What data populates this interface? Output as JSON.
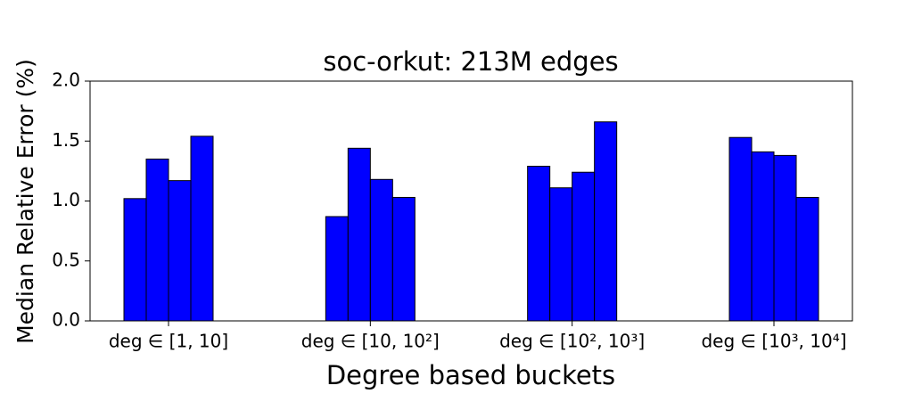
{
  "chart_data": {
    "type": "bar",
    "title": "soc-orkut: 213M edges",
    "x_label": "Degree based buckets",
    "y_label": "Median Relative Error (%)",
    "categories": [
      "deg ∈ [1, 10]",
      "deg ∈ [10, 10²]",
      "deg ∈ [10², 10³]",
      "deg ∈ [10³, 10⁴]"
    ],
    "series": [
      {
        "color": "#0000ff",
        "values": [
          1.02,
          0.87,
          1.29,
          1.53
        ]
      },
      {
        "color": "#0000ff",
        "values": [
          1.35,
          1.44,
          1.11,
          1.41
        ]
      },
      {
        "color": "#0000ff",
        "values": [
          1.17,
          1.18,
          1.24,
          1.38
        ]
      },
      {
        "color": "#0000ff",
        "values": [
          1.54,
          1.03,
          1.66,
          1.03
        ]
      }
    ],
    "ylim": [
      0,
      2
    ],
    "yticks": [
      {
        "value": 0,
        "label": "0.0"
      },
      {
        "value": 0.5,
        "label": "0.5"
      },
      {
        "value": 1,
        "label": "1.0"
      },
      {
        "value": 1.5,
        "label": "1.5"
      },
      {
        "value": 2,
        "label": "2.0"
      }
    ],
    "grid": false
  }
}
